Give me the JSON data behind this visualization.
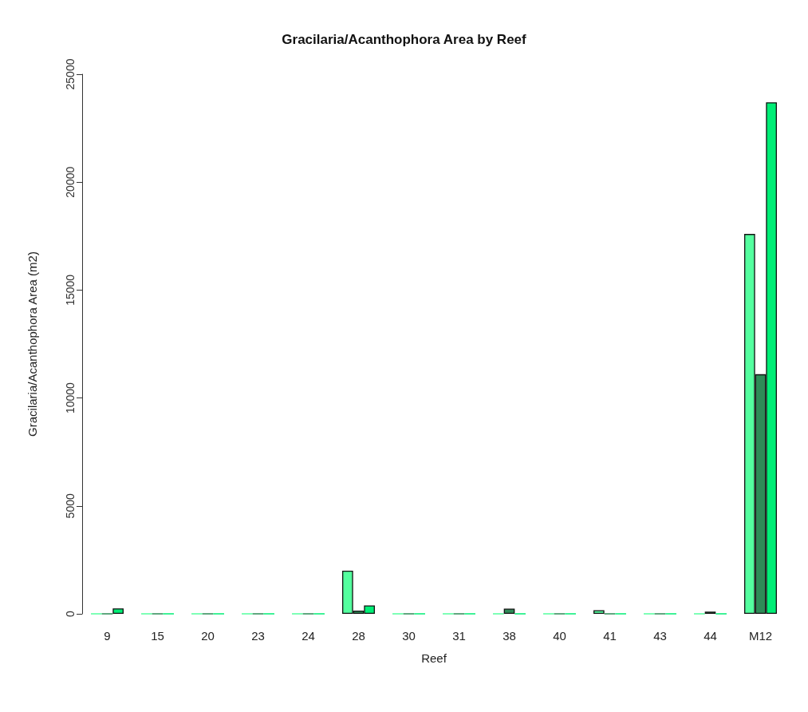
{
  "chart_data": {
    "type": "bar",
    "title": "Gracilaria/Acanthophora Area by Reef",
    "xlabel": "Reef",
    "ylabel": "Gracilaria/Acanthophora Area (m2)",
    "categories": [
      "9",
      "15",
      "20",
      "23",
      "24",
      "28",
      "30",
      "31",
      "38",
      "40",
      "41",
      "43",
      "44",
      "M12"
    ],
    "series": [
      {
        "color": "#54ff9f",
        "values": [
          0,
          0,
          0,
          0,
          0,
          2000,
          0,
          0,
          0,
          0,
          170,
          0,
          0,
          17600
        ]
      },
      {
        "color": "#2e8b57",
        "values": [
          0,
          0,
          0,
          0,
          0,
          150,
          0,
          0,
          240,
          0,
          0,
          0,
          100,
          11100
        ]
      },
      {
        "color": "#00ee76",
        "values": [
          250,
          0,
          0,
          0,
          0,
          390,
          0,
          0,
          0,
          0,
          0,
          0,
          0,
          23700
        ]
      }
    ],
    "ylim": [
      0,
      25000
    ],
    "yticks": [
      0,
      5000,
      10000,
      15000,
      20000,
      25000
    ],
    "grid": false
  }
}
